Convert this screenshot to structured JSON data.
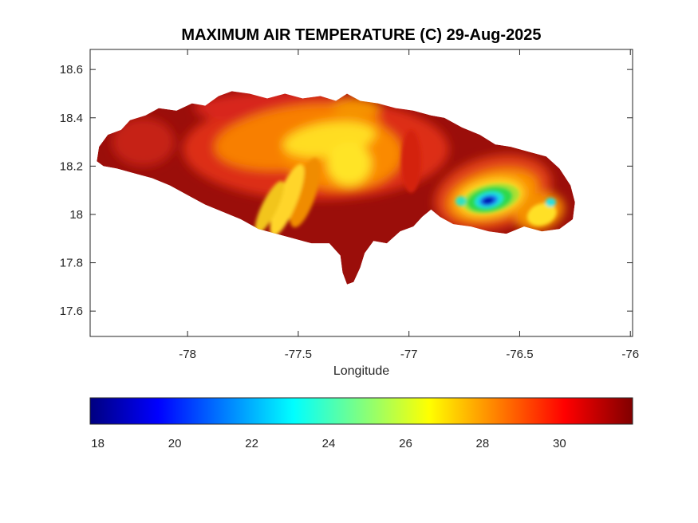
{
  "figure": {
    "background": "#FFFFFF",
    "axis_color": "#262626",
    "title_color": "#000000"
  },
  "chart_data": {
    "type": "heatmap",
    "title": "MAXIMUM AIR TEMPERATURE (C) 29-Aug-2025",
    "xlabel": "Longitude",
    "region": "Jamaica",
    "grid": false,
    "xlim": [
      -78.44,
      -75.99
    ],
    "ylim": [
      17.495,
      18.683
    ],
    "xticks": [
      -78,
      -77.5,
      -77,
      -76.5,
      -76
    ],
    "xtick_labels": [
      "-78",
      "-77.5",
      "-77",
      "-76.5",
      "-76"
    ],
    "yticks": [
      18.6,
      18.4,
      18.2,
      18,
      17.8,
      17.6
    ],
    "ytick_labels": [
      "18.6",
      "18.4",
      "18.2",
      "18",
      "17.8",
      "17.6"
    ],
    "colorbar": {
      "orientation": "horizontal",
      "colormap": "jet",
      "range": [
        17.8,
        31.9
      ],
      "ticks": [
        18,
        20,
        22,
        24,
        26,
        28,
        30
      ],
      "tick_labels": [
        "18",
        "20",
        "22",
        "24",
        "26",
        "28",
        "30"
      ],
      "stops": [
        {
          "o": 0.0,
          "c": "#000080"
        },
        {
          "o": 0.125,
          "c": "#0000FF"
        },
        {
          "o": 0.25,
          "c": "#0080FF"
        },
        {
          "o": 0.375,
          "c": "#00FFFF"
        },
        {
          "o": 0.5,
          "c": "#80FF80"
        },
        {
          "o": 0.625,
          "c": "#FFFF00"
        },
        {
          "o": 0.75,
          "c": "#FF8000"
        },
        {
          "o": 0.875,
          "c": "#FF0000"
        },
        {
          "o": 1.0,
          "c": "#800000"
        }
      ]
    },
    "base_color": "#9B0E0A",
    "island_outline": [
      [
        -78.41,
        18.22
      ],
      [
        -78.4,
        18.28
      ],
      [
        -78.36,
        18.33
      ],
      [
        -78.3,
        18.35
      ],
      [
        -78.26,
        18.39
      ],
      [
        -78.19,
        18.41
      ],
      [
        -78.13,
        18.44
      ],
      [
        -78.05,
        18.43
      ],
      [
        -77.98,
        18.46
      ],
      [
        -77.92,
        18.45
      ],
      [
        -77.86,
        18.49
      ],
      [
        -77.8,
        18.51
      ],
      [
        -77.72,
        18.5
      ],
      [
        -77.64,
        18.48
      ],
      [
        -77.56,
        18.5
      ],
      [
        -77.48,
        18.48
      ],
      [
        -77.4,
        18.49
      ],
      [
        -77.33,
        18.47
      ],
      [
        -77.28,
        18.5
      ],
      [
        -77.22,
        18.47
      ],
      [
        -77.14,
        18.46
      ],
      [
        -77.06,
        18.44
      ],
      [
        -76.98,
        18.43
      ],
      [
        -76.9,
        18.41
      ],
      [
        -76.84,
        18.4
      ],
      [
        -76.76,
        18.36
      ],
      [
        -76.68,
        18.33
      ],
      [
        -76.61,
        18.29
      ],
      [
        -76.54,
        18.28
      ],
      [
        -76.46,
        18.26
      ],
      [
        -76.38,
        18.24
      ],
      [
        -76.32,
        18.19
      ],
      [
        -76.27,
        18.12
      ],
      [
        -76.25,
        18.05
      ],
      [
        -76.26,
        17.98
      ],
      [
        -76.32,
        17.94
      ],
      [
        -76.4,
        17.93
      ],
      [
        -76.48,
        17.95
      ],
      [
        -76.56,
        17.92
      ],
      [
        -76.64,
        17.93
      ],
      [
        -76.72,
        17.95
      ],
      [
        -76.8,
        17.96
      ],
      [
        -76.86,
        17.99
      ],
      [
        -76.9,
        18.02
      ],
      [
        -76.94,
        17.99
      ],
      [
        -76.98,
        17.95
      ],
      [
        -77.04,
        17.93
      ],
      [
        -77.1,
        17.88
      ],
      [
        -77.16,
        17.89
      ],
      [
        -77.2,
        17.84
      ],
      [
        -77.22,
        17.78
      ],
      [
        -77.25,
        17.72
      ],
      [
        -77.28,
        17.71
      ],
      [
        -77.3,
        17.76
      ],
      [
        -77.31,
        17.83
      ],
      [
        -77.36,
        17.88
      ],
      [
        -77.44,
        17.88
      ],
      [
        -77.52,
        17.9
      ],
      [
        -77.6,
        17.92
      ],
      [
        -77.68,
        17.94
      ],
      [
        -77.76,
        17.98
      ],
      [
        -77.84,
        18.01
      ],
      [
        -77.92,
        18.04
      ],
      [
        -78.0,
        18.08
      ],
      [
        -78.08,
        18.12
      ],
      [
        -78.16,
        18.15
      ],
      [
        -78.24,
        18.17
      ],
      [
        -78.32,
        18.19
      ],
      [
        -78.38,
        18.2
      ]
    ],
    "patches": [
      {
        "lon": -77.42,
        "lat": 18.27,
        "rx": 0.6,
        "ry": 0.21,
        "rot": 0,
        "color": "#DD2F12"
      },
      {
        "lon": -77.55,
        "lat": 18.44,
        "rx": 0.42,
        "ry": 0.07,
        "rot": 0,
        "color": "#D8281E"
      },
      {
        "lon": -78.2,
        "lat": 18.3,
        "rx": 0.14,
        "ry": 0.1,
        "rot": 0,
        "color": "#C62014"
      },
      {
        "lon": -77.5,
        "lat": 18.32,
        "rx": 0.38,
        "ry": 0.13,
        "rot": -8,
        "color": "#F87F00"
      },
      {
        "lon": -77.3,
        "lat": 18.25,
        "rx": 0.27,
        "ry": 0.15,
        "rot": 0,
        "color": "#FA8A00"
      },
      {
        "lon": -77.24,
        "lat": 18.44,
        "rx": 0.11,
        "ry": 0.04,
        "rot": 0,
        "color": "#F59300"
      },
      {
        "lon": -77.36,
        "lat": 18.31,
        "rx": 0.21,
        "ry": 0.07,
        "rot": -8,
        "color": "#FFDD20"
      },
      {
        "lon": -77.27,
        "lat": 18.21,
        "rx": 0.1,
        "ry": 0.09,
        "rot": 0,
        "color": "#FFE428"
      },
      {
        "lon": -77.47,
        "lat": 18.09,
        "rx": 0.05,
        "ry": 0.15,
        "rot": 18,
        "color": "#F08C00",
        "f": "fine"
      },
      {
        "lon": -77.55,
        "lat": 18.06,
        "rx": 0.045,
        "ry": 0.16,
        "rot": 22,
        "color": "#FFD52A",
        "f": "fine"
      },
      {
        "lon": -77.63,
        "lat": 18.03,
        "rx": 0.035,
        "ry": 0.12,
        "rot": 26,
        "color": "#F2C51E",
        "f": "fine"
      },
      {
        "lon": -76.99,
        "lat": 18.22,
        "rx": 0.045,
        "ry": 0.13,
        "rot": 0,
        "color": "#D42410",
        "f": "fine"
      },
      {
        "lon": -76.62,
        "lat": 18.09,
        "rx": 0.27,
        "ry": 0.15,
        "rot": -15,
        "color": "#E04014"
      },
      {
        "lon": -76.62,
        "lat": 18.08,
        "rx": 0.21,
        "ry": 0.1,
        "rot": -15,
        "color": "#FB9200"
      },
      {
        "lon": -76.63,
        "lat": 18.07,
        "rx": 0.15,
        "ry": 0.072,
        "rot": -12,
        "color": "#FFE026"
      },
      {
        "lon": -76.63,
        "lat": 18.066,
        "rx": 0.13,
        "ry": 0.058,
        "rot": -12,
        "color": "#A9E032",
        "f": "fine"
      },
      {
        "lon": -76.635,
        "lat": 18.062,
        "rx": 0.105,
        "ry": 0.05,
        "rot": -12,
        "color": "#2FD94B",
        "f": "fine"
      },
      {
        "lon": -76.638,
        "lat": 18.06,
        "rx": 0.065,
        "ry": 0.033,
        "rot": -12,
        "color": "#1FE0DC",
        "f": "fine"
      },
      {
        "lon": -76.64,
        "lat": 18.058,
        "rx": 0.042,
        "ry": 0.022,
        "rot": -12,
        "color": "#1E78F0",
        "f": "fine"
      },
      {
        "lon": -76.642,
        "lat": 18.057,
        "rx": 0.026,
        "ry": 0.014,
        "rot": -12,
        "color": "#0009B4",
        "f": "fine"
      },
      {
        "lon": -76.41,
        "lat": 18.01,
        "rx": 0.115,
        "ry": 0.075,
        "rot": -20,
        "color": "#F59000"
      },
      {
        "lon": -76.4,
        "lat": 18.0,
        "rx": 0.068,
        "ry": 0.045,
        "rot": -20,
        "color": "#FFE028",
        "f": "fine"
      },
      {
        "lon": -76.765,
        "lat": 18.055,
        "rx": 0.025,
        "ry": 0.02,
        "rot": 0,
        "color": "#30E0C0",
        "f": "fine"
      },
      {
        "lon": -76.36,
        "lat": 18.05,
        "rx": 0.024,
        "ry": 0.018,
        "rot": 0,
        "color": "#28E0E0",
        "f": "fine"
      }
    ]
  }
}
